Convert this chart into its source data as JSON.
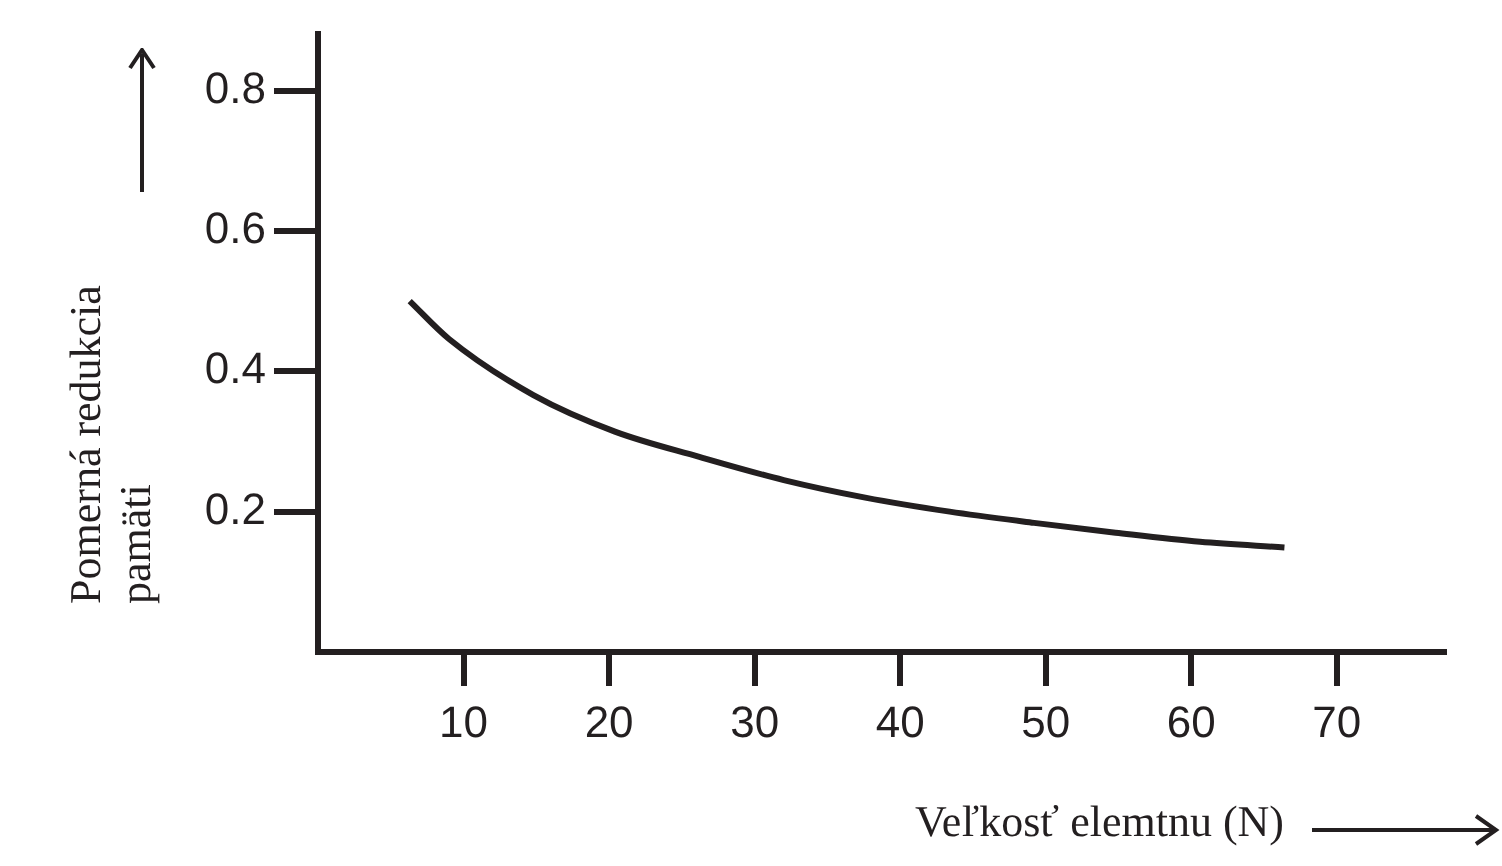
{
  "chart_data": {
    "type": "line",
    "xlabel": "Veľkosť elemtnu (N)",
    "ylabel": "Pomerná redukcia pamäti",
    "xlim": [
      0,
      77.5
    ],
    "xticks": [
      10,
      20,
      30,
      40,
      50,
      60,
      70
    ],
    "ylim": [
      0,
      0.88
    ],
    "yticks": [
      0.2,
      0.4,
      0.6,
      0.8
    ],
    "grid": false,
    "legend": false,
    "marker": "none",
    "line_style": "solid",
    "series": [
      {
        "color": "#231f20",
        "x": [
          6.3,
          9.0,
          14.8,
          20.4,
          26.2,
          32.0,
          37.6,
          43.4,
          49.2,
          54.8,
          60.6,
          66.4
        ],
        "values": [
          0.5,
          0.446,
          0.366,
          0.314,
          0.278,
          0.245,
          0.22,
          0.2,
          0.184,
          0.17,
          0.157,
          0.149
        ]
      }
    ]
  }
}
